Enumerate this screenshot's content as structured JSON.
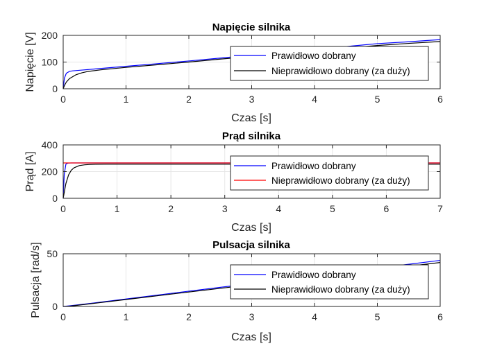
{
  "chart_data": [
    {
      "type": "line",
      "title": "Napięcie silnika",
      "xlabel": "Czas [s]",
      "ylabel": "Napięcie [V]",
      "xlim": [
        0,
        6
      ],
      "ylim": [
        0,
        200
      ],
      "xticks": [
        0,
        1,
        2,
        3,
        4,
        5,
        6
      ],
      "yticks": [
        0,
        100,
        200
      ],
      "grid": true,
      "legend_position": "right",
      "series": [
        {
          "name": "Prawidłowo dobrany",
          "color": "#0000ff",
          "x": [
            0,
            0.02,
            0.05,
            0.1,
            0.15,
            0.2,
            0.3,
            0.5,
            1,
            1.5,
            2,
            2.5,
            3,
            3.5,
            4,
            4.5,
            5,
            5.5,
            6
          ],
          "y": [
            0,
            40,
            58,
            65,
            67,
            68,
            70,
            74,
            84,
            94,
            104,
            115,
            126,
            137,
            148,
            158,
            169,
            176,
            184
          ]
        },
        {
          "name": "Nieprawidłowo dobrany (za duży)",
          "color": "#000000",
          "x": [
            0,
            0.02,
            0.05,
            0.1,
            0.2,
            0.3,
            0.4,
            0.6,
            1,
            1.5,
            2,
            2.5,
            3,
            3.5,
            4,
            4.5,
            5,
            5.5,
            6
          ],
          "y": [
            0,
            12,
            25,
            38,
            52,
            60,
            65,
            71,
            80,
            90,
            100,
            111,
            121,
            132,
            142,
            152,
            162,
            170,
            177
          ]
        }
      ]
    },
    {
      "type": "line",
      "title": "Prąd silnika",
      "xlabel": "Czas [s]",
      "ylabel": "Prąd [A]",
      "xlim": [
        0,
        7
      ],
      "ylim": [
        0,
        400
      ],
      "xticks": [
        0,
        1,
        2,
        3,
        4,
        5,
        6,
        7
      ],
      "yticks": [
        0,
        200,
        400
      ],
      "grid": true,
      "legend_position": "right",
      "series": [
        {
          "name": "Prawidłowo dobrany",
          "color": "#0000ff",
          "x": [
            0,
            0.02,
            0.05,
            0.08,
            0.1,
            0.15,
            7
          ],
          "y": [
            0,
            180,
            255,
            263,
            264,
            265,
            265
          ]
        },
        {
          "name": "Nieprawidłowo dobrany (za duży)",
          "color": "#ff0000",
          "x": [
            0,
            7
          ],
          "y": [
            265,
            265
          ]
        },
        {
          "name": "",
          "color": "#000000",
          "x": [
            0,
            0.05,
            0.1,
            0.15,
            0.2,
            0.3,
            0.4,
            0.5,
            0.6,
            0.8,
            1,
            7
          ],
          "y": [
            0,
            110,
            175,
            210,
            228,
            245,
            251,
            254,
            255,
            256,
            256,
            256
          ]
        }
      ]
    },
    {
      "type": "line",
      "title": "Pulsacja silnika",
      "xlabel": "Czas [s]",
      "ylabel": "Pulsacja [rad/s]",
      "xlim": [
        0,
        6
      ],
      "ylim": [
        0,
        50
      ],
      "xticks": [
        0,
        1,
        2,
        3,
        4,
        5,
        6
      ],
      "yticks": [
        0,
        50
      ],
      "grid": true,
      "legend_position": "right",
      "series": [
        {
          "name": "Prawidłowo dobrany",
          "color": "#0000ff",
          "x": [
            0,
            0.1,
            0.5,
            1,
            2,
            3,
            4,
            5,
            6
          ],
          "y": [
            0,
            0.6,
            3.4,
            7.1,
            14.5,
            21.8,
            29.1,
            36.4,
            43.7
          ]
        },
        {
          "name": "Nieprawidłowo dobrany (za duży)",
          "color": "#000000",
          "x": [
            0,
            0.1,
            0.2,
            0.5,
            1,
            2,
            3,
            4,
            5,
            6
          ],
          "y": [
            0,
            0.3,
            0.9,
            3.0,
            6.6,
            13.7,
            20.7,
            27.7,
            34.7,
            41.7
          ]
        }
      ]
    }
  ]
}
